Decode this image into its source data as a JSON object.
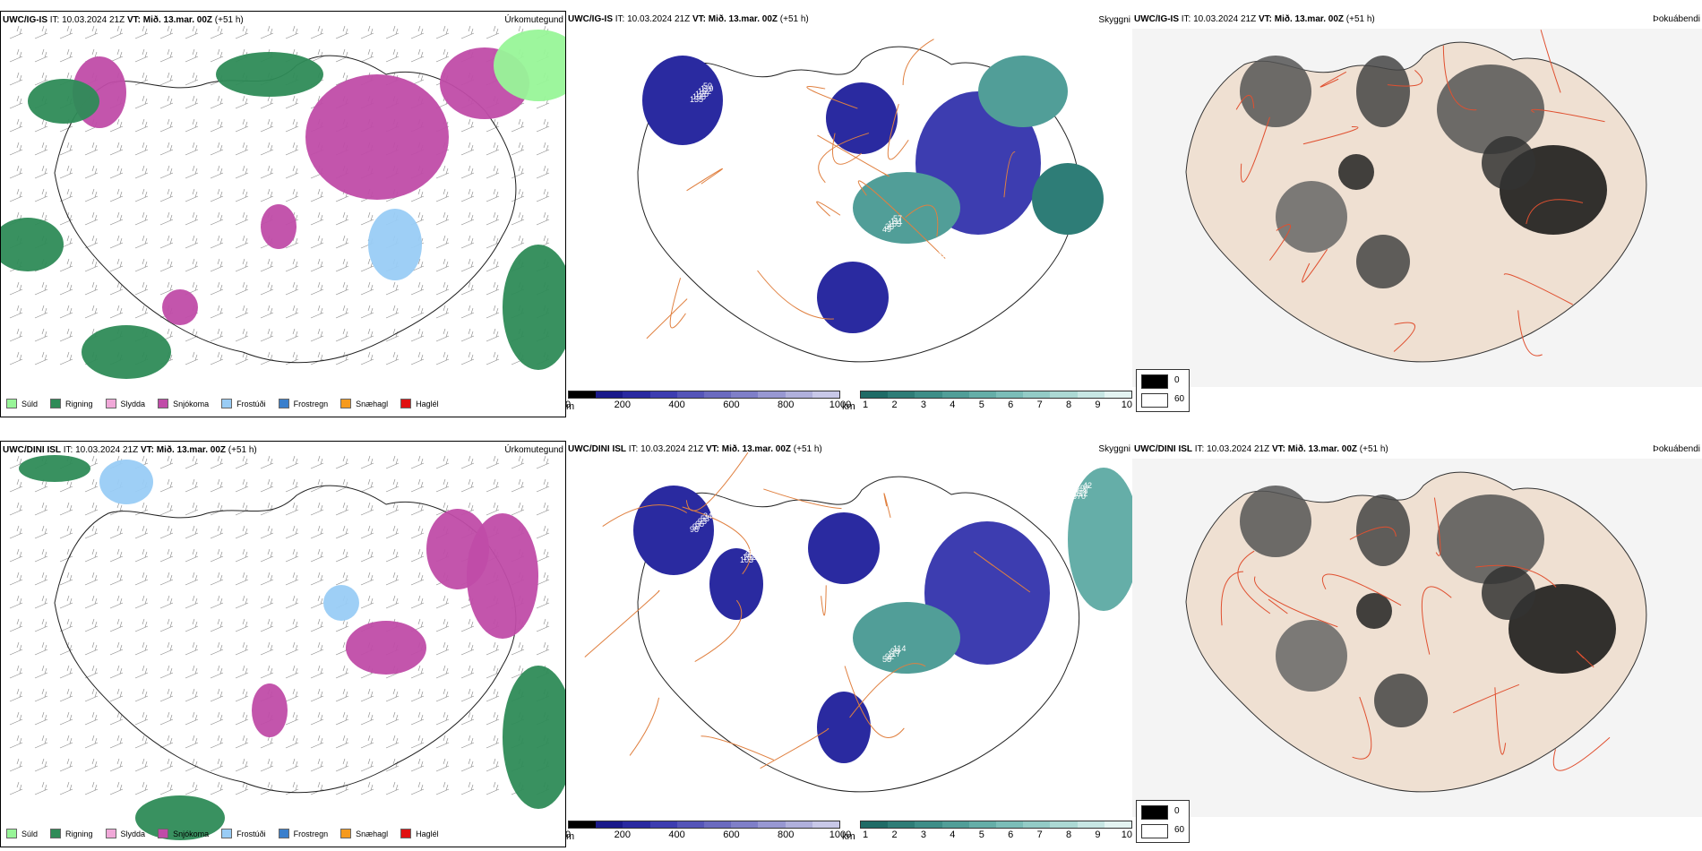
{
  "rows": [
    {
      "precip": {
        "model": "UWC/IG-IS",
        "it": "IT: 10.03.2024 21Z",
        "vt_label": "VT:",
        "vt": "Mið. 13.mar. 00Z",
        "lead": "(+51 h)",
        "panel_name": "Úrkomutegund"
      },
      "vis": {
        "model": "UWC/IG-IS",
        "it": "IT: 10.03.2024 21Z",
        "vt_label": "VT:",
        "vt": "Mið. 13.mar. 00Z",
        "lead": "(+51 h)",
        "panel_name": "Skyggni"
      },
      "fog": {
        "model": "UWC/IG-IS",
        "it": "IT: 10.03.2024 21Z",
        "vt_label": "VT:",
        "vt": "Mið. 13.mar. 00Z",
        "lead": "(+51 h)",
        "panel_name": "Þokuábendi"
      }
    },
    {
      "precip": {
        "model": "UWC/DINI ISL",
        "it": "IT: 10.03.2024 21Z",
        "vt_label": "VT:",
        "vt": "Mið. 13.mar. 00Z",
        "lead": "(+51 h)",
        "panel_name": "Úrkomutegund"
      },
      "vis": {
        "model": "UWC/DINI ISL",
        "it": "IT: 10.03.2024 21Z",
        "vt_label": "VT:",
        "vt": "Mið. 13.mar. 00Z",
        "lead": "(+51 h)",
        "panel_name": "Skyggni"
      },
      "fog": {
        "model": "UWC/DINI ISL",
        "it": "IT: 10.03.2024 21Z",
        "vt_label": "VT:",
        "vt": "Mið. 13.mar. 00Z",
        "lead": "(+51 h)",
        "panel_name": "Þokuábendi"
      }
    }
  ],
  "precip_legend": [
    {
      "label": "Súld",
      "color": "#98f598"
    },
    {
      "label": "Rigning",
      "color": "#2e8b57"
    },
    {
      "label": "Slydda",
      "color": "#f0a8d8"
    },
    {
      "label": "Snjókoma",
      "color": "#c04ca8"
    },
    {
      "label": "Frostúði",
      "color": "#99ccf5"
    },
    {
      "label": "Frostregn",
      "color": "#3a7fcc"
    },
    {
      "label": "Snæhagl",
      "color": "#f59a1e"
    },
    {
      "label": "Haglél",
      "color": "#e01010"
    }
  ],
  "vis_scale_m": {
    "unit": "m",
    "ticks": [
      "0",
      "200",
      "400",
      "600",
      "800",
      "1000"
    ],
    "colors": [
      "#000000",
      "#1a1a8a",
      "#2a2aa0",
      "#3d3db0",
      "#5555b8",
      "#6a6abf",
      "#7f7fc8",
      "#9898d2",
      "#b0b0dc",
      "#c8c8e8"
    ]
  },
  "vis_scale_km": {
    "unit": "km",
    "ticks": [
      "1",
      "2",
      "3",
      "4",
      "5",
      "6",
      "7",
      "8",
      "9",
      "10"
    ],
    "colors": [
      "#1f6b66",
      "#2e7d77",
      "#3e8e88",
      "#519e98",
      "#65aea8",
      "#7bbdb8",
      "#93cbc6",
      "#acd9d4",
      "#c7e6e3",
      "#e3f3f1"
    ]
  },
  "fog_key": {
    "labels": [
      "0",
      "60"
    ],
    "colors": [
      "#000000",
      "#ffffff"
    ]
  },
  "map_values_vis_row1": [
    "71",
    "50",
    "48",
    "78",
    "69",
    "57",
    "73",
    "64",
    "82",
    "101",
    "119",
    "91",
    "95",
    "216",
    "111",
    "166",
    "189",
    "176",
    "121",
    "162",
    "131",
    "140",
    "193",
    "165",
    "169",
    "142",
    "254",
    "104",
    "125",
    "124",
    "62",
    "47",
    "36",
    "58",
    "66",
    "68",
    "69",
    "108",
    "79",
    "93",
    "48",
    "49",
    "47",
    "12",
    "153",
    "144",
    "135"
  ],
  "map_values_vis_row2": [
    "70",
    "34",
    "87",
    "47",
    "91",
    "114",
    "101",
    "67",
    "82",
    "42",
    "53",
    "62",
    "70",
    "87",
    "98",
    "78",
    "91",
    "97",
    "97",
    "93",
    "69",
    "118",
    "75",
    "117",
    "123",
    "63",
    "126",
    "64",
    "65",
    "162",
    "92",
    "76",
    "92",
    "90",
    "82",
    "115",
    "112",
    "97",
    "103",
    "71",
    "99",
    "58",
    "108",
    "16",
    "389",
    "370",
    "98"
  ]
}
